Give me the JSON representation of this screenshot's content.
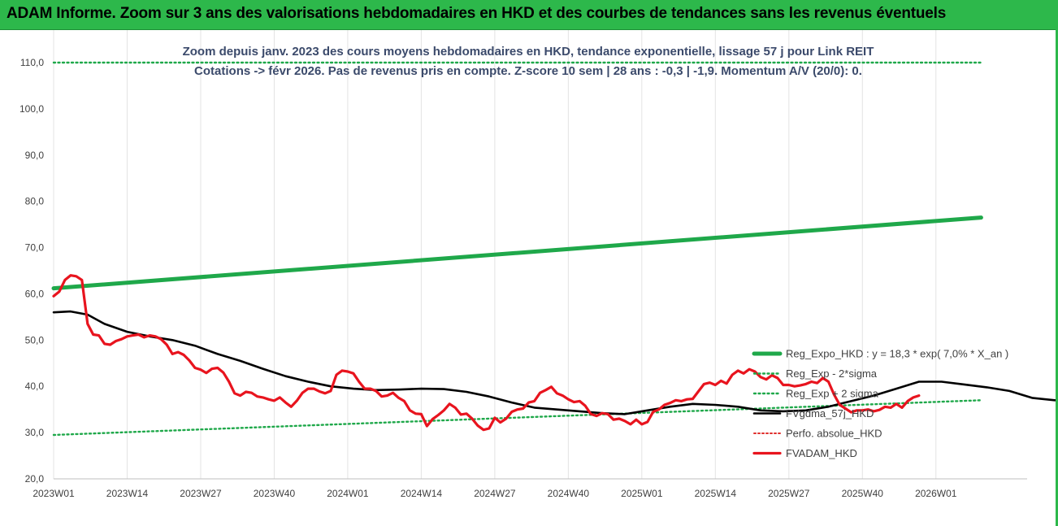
{
  "header": {
    "title": "ADAM Informe. Zoom sur 3 ans des valorisations hebdomadaires en HKD et des courbes de tendances sans les revenus éventuels"
  },
  "chart_data": {
    "type": "line",
    "title_line1": "Zoom depuis janv. 2023 des cours moyens hebdomadaires en HKD, tendance exponentielle, lissage 57 j pour Link REIT",
    "title_line2": "Cotations -> févr 2026.  Pas de revenus pris en compte. Z-score 10 sem | 28 ans : -0,3 | -1,9. Momentum A/V (20/0): 0.",
    "ylim": [
      20,
      110
    ],
    "yticks": [
      "20,0",
      "30,0",
      "40,0",
      "50,0",
      "60,0",
      "70,0",
      "80,0",
      "90,0",
      "100,0",
      "110,0"
    ],
    "xticks": [
      "2023W01",
      "2023W14",
      "2023W27",
      "2023W40",
      "2024W01",
      "2024W14",
      "2024W27",
      "2024W40",
      "2025W01",
      "2025W14",
      "2025W27",
      "2025W40",
      "2026W01"
    ],
    "grid": "vertical",
    "legend_position": "right",
    "colors": {
      "reg_expo": "#1fa84a",
      "reg_band": "#1fa84a",
      "perfo": "#e0302e",
      "fvgdma": "#000000",
      "fvadam": "#e8141e"
    },
    "series": [
      {
        "name": "Reg_Expo_HKD : y = 18,3 * exp( 7,0% *  X_an )",
        "style": "solid-thick",
        "points": [
          [
            0,
            61.2
          ],
          [
            164,
            76.5
          ]
        ]
      },
      {
        "name": "Reg_Exp - 2*sigma",
        "style": "dotted",
        "points": [
          [
            0,
            29.5
          ],
          [
            164,
            37.0
          ]
        ]
      },
      {
        "name": "Reg_Exp + 2 sigma",
        "style": "dotted",
        "points": [
          [
            0,
            110.0
          ],
          [
            164,
            110.0
          ]
        ]
      },
      {
        "name": "FVgdma_57j_HKD",
        "style": "solid-black",
        "points": [
          [
            0,
            56.0
          ],
          [
            3,
            56.2
          ],
          [
            6,
            55.5
          ],
          [
            9,
            53.5
          ],
          [
            13,
            51.8
          ],
          [
            17,
            50.8
          ],
          [
            21,
            50.0
          ],
          [
            25,
            48.8
          ],
          [
            29,
            47.0
          ],
          [
            33,
            45.5
          ],
          [
            37,
            43.8
          ],
          [
            41,
            42.2
          ],
          [
            45,
            41.0
          ],
          [
            49,
            40.0
          ],
          [
            53,
            39.5
          ],
          [
            57,
            39.2
          ],
          [
            61,
            39.3
          ],
          [
            65,
            39.5
          ],
          [
            69,
            39.4
          ],
          [
            73,
            38.8
          ],
          [
            77,
            37.8
          ],
          [
            81,
            36.5
          ],
          [
            85,
            35.4
          ],
          [
            89,
            35.0
          ],
          [
            93,
            34.6
          ],
          [
            97,
            34.2
          ],
          [
            101,
            34.0
          ],
          [
            105,
            34.8
          ],
          [
            109,
            35.6
          ],
          [
            113,
            36.2
          ],
          [
            117,
            36.0
          ],
          [
            121,
            35.6
          ],
          [
            125,
            34.8
          ],
          [
            129,
            34.6
          ],
          [
            133,
            34.8
          ],
          [
            137,
            35.6
          ],
          [
            141,
            36.8
          ],
          [
            145,
            38.0
          ],
          [
            149,
            39.5
          ],
          [
            153,
            41.0
          ],
          [
            157,
            41.0
          ],
          [
            161,
            40.4
          ],
          [
            165,
            39.8
          ],
          [
            169,
            39.0
          ],
          [
            173,
            37.5
          ],
          [
            177,
            37.0
          ],
          [
            181,
            37.0
          ],
          [
            184,
            37.3
          ]
        ]
      },
      {
        "name": "Perfo. absolue_HKD",
        "style": "dotted-red",
        "points": []
      },
      {
        "name": "FVADAM_HKD",
        "style": "solid-red-thick",
        "points": [
          [
            0,
            59.5
          ],
          [
            1,
            60.5
          ],
          [
            2,
            63.0
          ],
          [
            3,
            64.0
          ],
          [
            4,
            63.8
          ],
          [
            5,
            63.0
          ],
          [
            6,
            53.5
          ],
          [
            7,
            51.2
          ],
          [
            8,
            51.0
          ],
          [
            9,
            49.2
          ],
          [
            10,
            49.0
          ],
          [
            11,
            49.8
          ],
          [
            12,
            50.2
          ],
          [
            13,
            50.8
          ],
          [
            14,
            51.0
          ],
          [
            15,
            51.2
          ],
          [
            16,
            50.6
          ],
          [
            17,
            51.0
          ],
          [
            18,
            50.8
          ],
          [
            19,
            50.2
          ],
          [
            20,
            49.0
          ],
          [
            21,
            47.0
          ],
          [
            22,
            47.4
          ],
          [
            23,
            46.8
          ],
          [
            24,
            45.6
          ],
          [
            25,
            44.0
          ],
          [
            26,
            43.6
          ],
          [
            27,
            42.9
          ],
          [
            28,
            43.8
          ],
          [
            29,
            44.0
          ],
          [
            30,
            43.0
          ],
          [
            31,
            41.0
          ],
          [
            32,
            38.5
          ],
          [
            33,
            38.0
          ],
          [
            34,
            38.8
          ],
          [
            35,
            38.6
          ],
          [
            36,
            37.8
          ],
          [
            37,
            37.6
          ],
          [
            38,
            37.2
          ],
          [
            39,
            36.9
          ],
          [
            40,
            37.6
          ],
          [
            41,
            36.5
          ],
          [
            42,
            35.6
          ],
          [
            43,
            36.9
          ],
          [
            44,
            38.6
          ],
          [
            45,
            39.5
          ],
          [
            46,
            39.5
          ],
          [
            47,
            38.9
          ],
          [
            48,
            38.5
          ],
          [
            49,
            39.0
          ],
          [
            50,
            42.5
          ],
          [
            51,
            43.4
          ],
          [
            52,
            43.2
          ],
          [
            53,
            42.8
          ],
          [
            54,
            41.0
          ],
          [
            55,
            39.5
          ],
          [
            56,
            39.5
          ],
          [
            57,
            39.0
          ],
          [
            58,
            37.8
          ],
          [
            59,
            38.0
          ],
          [
            60,
            38.6
          ],
          [
            61,
            37.5
          ],
          [
            62,
            36.8
          ],
          [
            63,
            34.8
          ],
          [
            64,
            34.1
          ],
          [
            65,
            34.0
          ],
          [
            66,
            31.4
          ],
          [
            67,
            32.9
          ],
          [
            68,
            33.8
          ],
          [
            69,
            34.8
          ],
          [
            70,
            36.2
          ],
          [
            71,
            35.4
          ],
          [
            72,
            33.9
          ],
          [
            73,
            34.1
          ],
          [
            74,
            33.0
          ],
          [
            75,
            31.5
          ],
          [
            76,
            30.6
          ],
          [
            77,
            30.9
          ],
          [
            78,
            33.2
          ],
          [
            79,
            32.2
          ],
          [
            80,
            33.0
          ],
          [
            81,
            34.5
          ],
          [
            82,
            35.0
          ],
          [
            83,
            35.2
          ],
          [
            84,
            36.5
          ],
          [
            85,
            36.8
          ],
          [
            86,
            38.6
          ],
          [
            87,
            39.2
          ],
          [
            88,
            39.9
          ],
          [
            89,
            38.5
          ],
          [
            90,
            38.0
          ],
          [
            91,
            37.2
          ],
          [
            92,
            36.6
          ],
          [
            93,
            36.8
          ],
          [
            94,
            35.8
          ],
          [
            95,
            34.0
          ],
          [
            96,
            33.6
          ],
          [
            97,
            34.2
          ],
          [
            98,
            34.0
          ],
          [
            99,
            32.8
          ],
          [
            100,
            33.0
          ],
          [
            101,
            32.5
          ],
          [
            102,
            31.8
          ],
          [
            103,
            32.8
          ],
          [
            104,
            31.8
          ],
          [
            105,
            32.3
          ],
          [
            106,
            34.5
          ],
          [
            107,
            35.0
          ],
          [
            108,
            36.0
          ],
          [
            109,
            36.4
          ],
          [
            110,
            37.0
          ],
          [
            111,
            36.8
          ],
          [
            112,
            37.2
          ],
          [
            113,
            37.3
          ],
          [
            114,
            38.9
          ],
          [
            115,
            40.5
          ],
          [
            116,
            40.8
          ],
          [
            117,
            40.3
          ],
          [
            118,
            41.2
          ],
          [
            119,
            40.6
          ],
          [
            120,
            42.5
          ],
          [
            121,
            43.4
          ],
          [
            122,
            42.8
          ],
          [
            123,
            43.7
          ],
          [
            124,
            43.2
          ],
          [
            125,
            42.0
          ],
          [
            126,
            41.5
          ],
          [
            127,
            42.4
          ],
          [
            128,
            41.8
          ],
          [
            129,
            40.3
          ],
          [
            130,
            40.3
          ],
          [
            131,
            40.0
          ],
          [
            132,
            40.2
          ],
          [
            133,
            40.5
          ],
          [
            134,
            41.0
          ],
          [
            135,
            40.7
          ],
          [
            136,
            41.8
          ],
          [
            137,
            41.0
          ],
          [
            138,
            38.2
          ],
          [
            139,
            36.0
          ],
          [
            140,
            35.2
          ],
          [
            141,
            34.4
          ],
          [
            142,
            34.8
          ],
          [
            143,
            34.8
          ],
          [
            144,
            35.0
          ],
          [
            145,
            34.6
          ],
          [
            146,
            34.9
          ],
          [
            147,
            35.6
          ],
          [
            148,
            35.4
          ],
          [
            149,
            36.2
          ],
          [
            150,
            35.4
          ],
          [
            151,
            36.8
          ],
          [
            152,
            37.6
          ],
          [
            153,
            38.0
          ]
        ]
      }
    ]
  }
}
